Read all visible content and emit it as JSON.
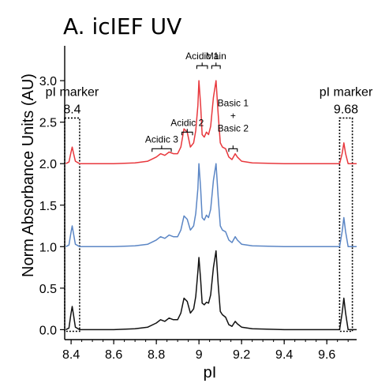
{
  "chart_data": {
    "type": "line",
    "title": "A. icIEF UV",
    "xlabel": "pI",
    "ylabel": "Norm Absorbance Units (AU)",
    "xlim": [
      8.37,
      9.74
    ],
    "ylim": [
      -0.12,
      3.42
    ],
    "xticks": [
      8.4,
      8.6,
      8.8,
      9,
      9.2,
      9.4,
      9.6
    ],
    "xtick_labels": [
      "8.4",
      "8.6",
      "8.8",
      "9",
      "9.2",
      "9.4",
      "9.6"
    ],
    "yticks": [
      0,
      0.5,
      1,
      1.5,
      2,
      2.5,
      3
    ],
    "ytick_labels": [
      "0.0",
      "0.5",
      "1.0",
      "1.5",
      "2.0",
      "2.5",
      "3.0"
    ],
    "grid": false,
    "legend": "none",
    "colors": {
      "top": "#e8383d",
      "middle": "#5b86c5",
      "bottom": "#111111",
      "axis": "#000000"
    },
    "series": [
      {
        "color": "#e8383d",
        "offset": 2.0,
        "points": [
          [
            8.375,
            0.0
          ],
          [
            8.39,
            0.02
          ],
          [
            8.398,
            0.12
          ],
          [
            8.405,
            0.2
          ],
          [
            8.412,
            0.12
          ],
          [
            8.42,
            0.03
          ],
          [
            8.44,
            0.0
          ],
          [
            8.6,
            0.0
          ],
          [
            8.7,
            0.01
          ],
          [
            8.76,
            0.03
          ],
          [
            8.8,
            0.08
          ],
          [
            8.82,
            0.12
          ],
          [
            8.84,
            0.1
          ],
          [
            8.86,
            0.14
          ],
          [
            8.88,
            0.12
          ],
          [
            8.9,
            0.12
          ],
          [
            8.915,
            0.2
          ],
          [
            8.93,
            0.42
          ],
          [
            8.945,
            0.38
          ],
          [
            8.96,
            0.2
          ],
          [
            8.975,
            0.25
          ],
          [
            8.985,
            0.4
          ],
          [
            8.995,
            0.7
          ],
          [
            9.0,
            1.0
          ],
          [
            9.008,
            0.7
          ],
          [
            9.015,
            0.35
          ],
          [
            9.025,
            0.32
          ],
          [
            9.035,
            0.38
          ],
          [
            9.045,
            0.35
          ],
          [
            9.055,
            0.45
          ],
          [
            9.068,
            0.8
          ],
          [
            9.08,
            1.0
          ],
          [
            9.09,
            0.6
          ],
          [
            9.1,
            0.25
          ],
          [
            9.11,
            0.2
          ],
          [
            9.125,
            0.18
          ],
          [
            9.14,
            0.08
          ],
          [
            9.155,
            0.05
          ],
          [
            9.17,
            0.12
          ],
          [
            9.18,
            0.08
          ],
          [
            9.2,
            0.03
          ],
          [
            9.25,
            0.01
          ],
          [
            9.4,
            0.0
          ],
          [
            9.6,
            0.0
          ],
          [
            9.66,
            0.0
          ],
          [
            9.672,
            0.12
          ],
          [
            9.68,
            0.25
          ],
          [
            9.688,
            0.12
          ],
          [
            9.7,
            0.0
          ],
          [
            9.74,
            0.0
          ]
        ],
        "peaks": [
          [
            9.0,
            1.0
          ],
          [
            9.08,
            1.0
          ]
        ]
      },
      {
        "color": "#5b86c5",
        "offset": 1.0,
        "points": [
          [
            8.375,
            0.0
          ],
          [
            8.39,
            0.02
          ],
          [
            8.398,
            0.15
          ],
          [
            8.405,
            0.25
          ],
          [
            8.412,
            0.15
          ],
          [
            8.42,
            0.03
          ],
          [
            8.44,
            0.0
          ],
          [
            8.6,
            0.0
          ],
          [
            8.7,
            0.01
          ],
          [
            8.76,
            0.03
          ],
          [
            8.8,
            0.08
          ],
          [
            8.82,
            0.12
          ],
          [
            8.84,
            0.1
          ],
          [
            8.86,
            0.14
          ],
          [
            8.88,
            0.12
          ],
          [
            8.9,
            0.12
          ],
          [
            8.915,
            0.2
          ],
          [
            8.93,
            0.37
          ],
          [
            8.945,
            0.33
          ],
          [
            8.96,
            0.2
          ],
          [
            8.975,
            0.25
          ],
          [
            8.985,
            0.4
          ],
          [
            8.995,
            0.7
          ],
          [
            9.0,
            1.0
          ],
          [
            9.008,
            0.7
          ],
          [
            9.015,
            0.35
          ],
          [
            9.025,
            0.32
          ],
          [
            9.035,
            0.38
          ],
          [
            9.045,
            0.35
          ],
          [
            9.055,
            0.45
          ],
          [
            9.068,
            0.8
          ],
          [
            9.08,
            1.0
          ],
          [
            9.09,
            0.6
          ],
          [
            9.1,
            0.25
          ],
          [
            9.11,
            0.2
          ],
          [
            9.125,
            0.18
          ],
          [
            9.14,
            0.08
          ],
          [
            9.155,
            0.05
          ],
          [
            9.17,
            0.12
          ],
          [
            9.18,
            0.08
          ],
          [
            9.2,
            0.03
          ],
          [
            9.25,
            0.01
          ],
          [
            9.4,
            0.0
          ],
          [
            9.6,
            0.0
          ],
          [
            9.66,
            0.0
          ],
          [
            9.672,
            0.18
          ],
          [
            9.68,
            0.35
          ],
          [
            9.688,
            0.18
          ],
          [
            9.7,
            0.0
          ],
          [
            9.74,
            0.0
          ]
        ],
        "peaks": [
          [
            9.0,
            1.0
          ],
          [
            9.08,
            1.0
          ]
        ]
      },
      {
        "color": "#111111",
        "offset": 0.0,
        "points": [
          [
            8.375,
            0.0
          ],
          [
            8.39,
            0.02
          ],
          [
            8.398,
            0.17
          ],
          [
            8.405,
            0.28
          ],
          [
            8.412,
            0.17
          ],
          [
            8.42,
            0.03
          ],
          [
            8.44,
            0.0
          ],
          [
            8.6,
            0.0
          ],
          [
            8.7,
            0.01
          ],
          [
            8.76,
            0.03
          ],
          [
            8.8,
            0.08
          ],
          [
            8.82,
            0.12
          ],
          [
            8.84,
            0.1
          ],
          [
            8.86,
            0.14
          ],
          [
            8.88,
            0.12
          ],
          [
            8.9,
            0.12
          ],
          [
            8.915,
            0.2
          ],
          [
            8.93,
            0.38
          ],
          [
            8.945,
            0.34
          ],
          [
            8.96,
            0.2
          ],
          [
            8.975,
            0.25
          ],
          [
            8.985,
            0.4
          ],
          [
            8.995,
            0.7
          ],
          [
            9.0,
            0.87
          ],
          [
            9.008,
            0.6
          ],
          [
            9.015,
            0.32
          ],
          [
            9.025,
            0.3
          ],
          [
            9.035,
            0.33
          ],
          [
            9.045,
            0.32
          ],
          [
            9.055,
            0.42
          ],
          [
            9.068,
            0.75
          ],
          [
            9.08,
            0.95
          ],
          [
            9.09,
            0.55
          ],
          [
            9.1,
            0.22
          ],
          [
            9.11,
            0.18
          ],
          [
            9.125,
            0.15
          ],
          [
            9.14,
            0.06
          ],
          [
            9.155,
            0.04
          ],
          [
            9.17,
            0.1
          ],
          [
            9.18,
            0.07
          ],
          [
            9.2,
            0.03
          ],
          [
            9.25,
            0.01
          ],
          [
            9.4,
            0.0
          ],
          [
            9.6,
            0.0
          ],
          [
            9.66,
            0.0
          ],
          [
            9.672,
            0.2
          ],
          [
            9.68,
            0.38
          ],
          [
            9.688,
            0.2
          ],
          [
            9.7,
            0.0
          ],
          [
            9.74,
            0.0
          ]
        ],
        "peaks": [
          [
            9.0,
            0.87
          ],
          [
            9.08,
            0.95
          ]
        ]
      }
    ],
    "marker_boxes": [
      {
        "label": "pI marker",
        "value": "8.4",
        "xrange": [
          8.37,
          8.44
        ],
        "yrange": [
          -0.02,
          2.55
        ]
      },
      {
        "label": "pI marker",
        "value": "9.68",
        "xrange": [
          9.66,
          9.72
        ],
        "yrange": [
          -0.02,
          2.55
        ]
      }
    ],
    "annotations": [
      {
        "text": "Acidic 3",
        "xrange": [
          8.78,
          8.87
        ],
        "y": 2.18
      },
      {
        "text": "Acidic 2",
        "xrange": [
          8.92,
          8.97
        ],
        "y": 2.38
      },
      {
        "text": "Acidic 1",
        "xrange": [
          8.99,
          9.04
        ],
        "y": 3.18
      },
      {
        "text": "Main",
        "xrange": [
          9.06,
          9.1
        ],
        "y": 3.18
      },
      {
        "text": "Basic 1",
        "text2": "+",
        "text3": "Basic 2",
        "xrange": [
          9.14,
          9.18
        ],
        "y": 2.18
      }
    ]
  }
}
